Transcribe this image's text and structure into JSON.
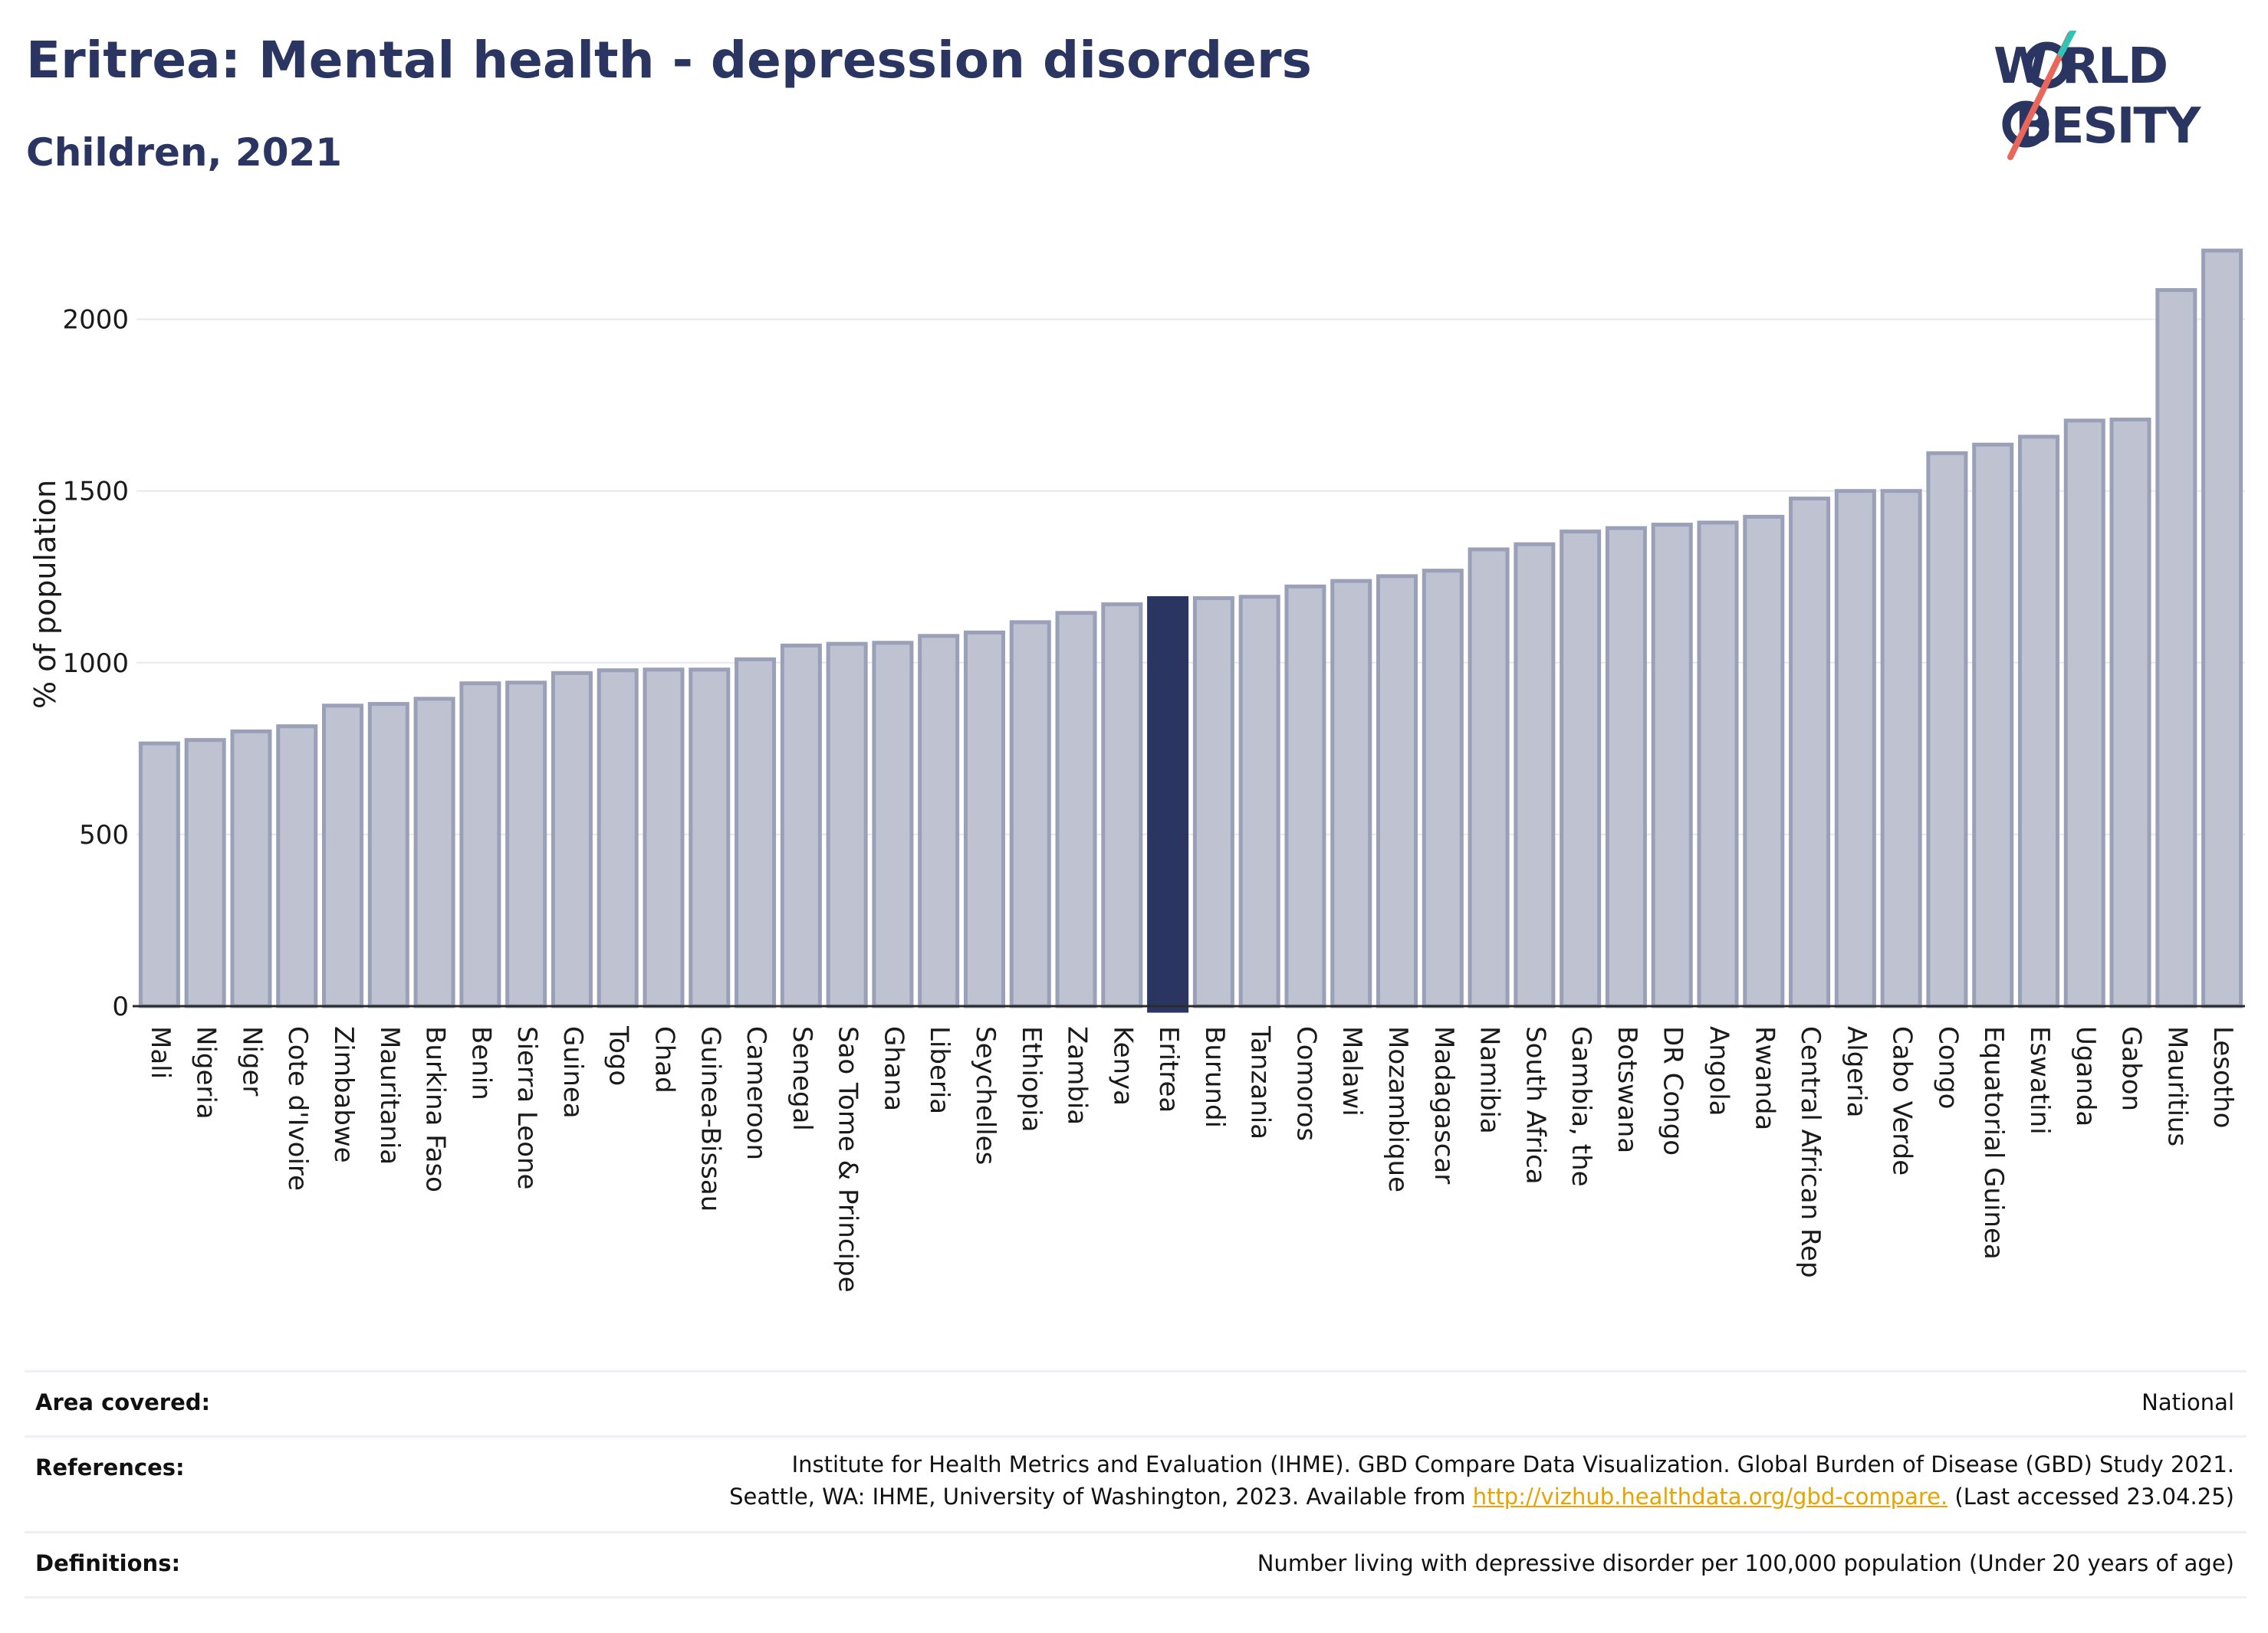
{
  "header": {
    "title": "Eritrea: Mental health - depression disorders",
    "subtitle": "Children, 2021"
  },
  "logo": {
    "line1": "W RLD",
    "line2": "BESITY",
    "text": "WORLD OBESITY"
  },
  "colors": {
    "highlight": "#2a3561",
    "bar": "#bfc2d0",
    "bar_edge": "#9aa0b8",
    "accent_red": "#e8665a",
    "accent_teal": "#2ec4b6"
  },
  "chart_data": {
    "type": "bar",
    "title": "",
    "xlabel": "",
    "ylabel": "% of population",
    "ylim": [
      0,
      2220
    ],
    "yticks": [
      0,
      500,
      1000,
      1500,
      2000
    ],
    "grid": true,
    "highlight": "Eritrea",
    "categories": [
      "Mali",
      "Nigeria",
      "Niger",
      "Cote d'Ivoire",
      "Zimbabwe",
      "Mauritania",
      "Burkina Faso",
      "Benin",
      "Sierra Leone",
      "Guinea",
      "Togo",
      "Chad",
      "Guinea-Bissau",
      "Cameroon",
      "Senegal",
      "Sao Tome & Principe",
      "Ghana",
      "Liberia",
      "Seychelles",
      "Ethiopia",
      "Zambia",
      "Kenya",
      "Eritrea",
      "Burundi",
      "Tanzania",
      "Comoros",
      "Malawi",
      "Mozambique",
      "Madagascar",
      "Namibia",
      "South Africa",
      "Gambia, the",
      "Botswana",
      "DR Congo",
      "Angola",
      "Rwanda",
      "Central African Rep",
      "Algeria",
      "Cabo Verde",
      "Congo",
      "Equatorial Guinea",
      "Eswatini",
      "Uganda",
      "Gabon",
      "Mauritius",
      "Lesotho"
    ],
    "values": [
      765,
      775,
      800,
      815,
      875,
      880,
      895,
      940,
      942,
      970,
      978,
      980,
      980,
      1010,
      1050,
      1055,
      1058,
      1078,
      1088,
      1118,
      1145,
      1170,
      1188,
      1188,
      1192,
      1222,
      1238,
      1252,
      1268,
      1330,
      1345,
      1382,
      1392,
      1402,
      1408,
      1425,
      1478,
      1500,
      1500,
      1610,
      1635,
      1658,
      1705,
      1708,
      2085,
      2200
    ]
  },
  "footer": {
    "area_label": "Area covered:",
    "area_value": "National",
    "references_label": "References:",
    "references_line1": "Institute for Health Metrics and Evaluation (IHME). GBD Compare Data Visualization. Global Burden of Disease (GBD) Study 2021.",
    "references_line2_pre": "Seattle, WA: IHME, University of Washington, 2023. Available from ",
    "references_link": "http://vizhub.healthdata.org/gbd-compare.",
    "references_line2_post": " (Last accessed 23.04.25)",
    "definitions_label": "Definitions:",
    "definitions_value": "Number living with depressive disorder per 100,000 population (Under 20 years of age)"
  }
}
